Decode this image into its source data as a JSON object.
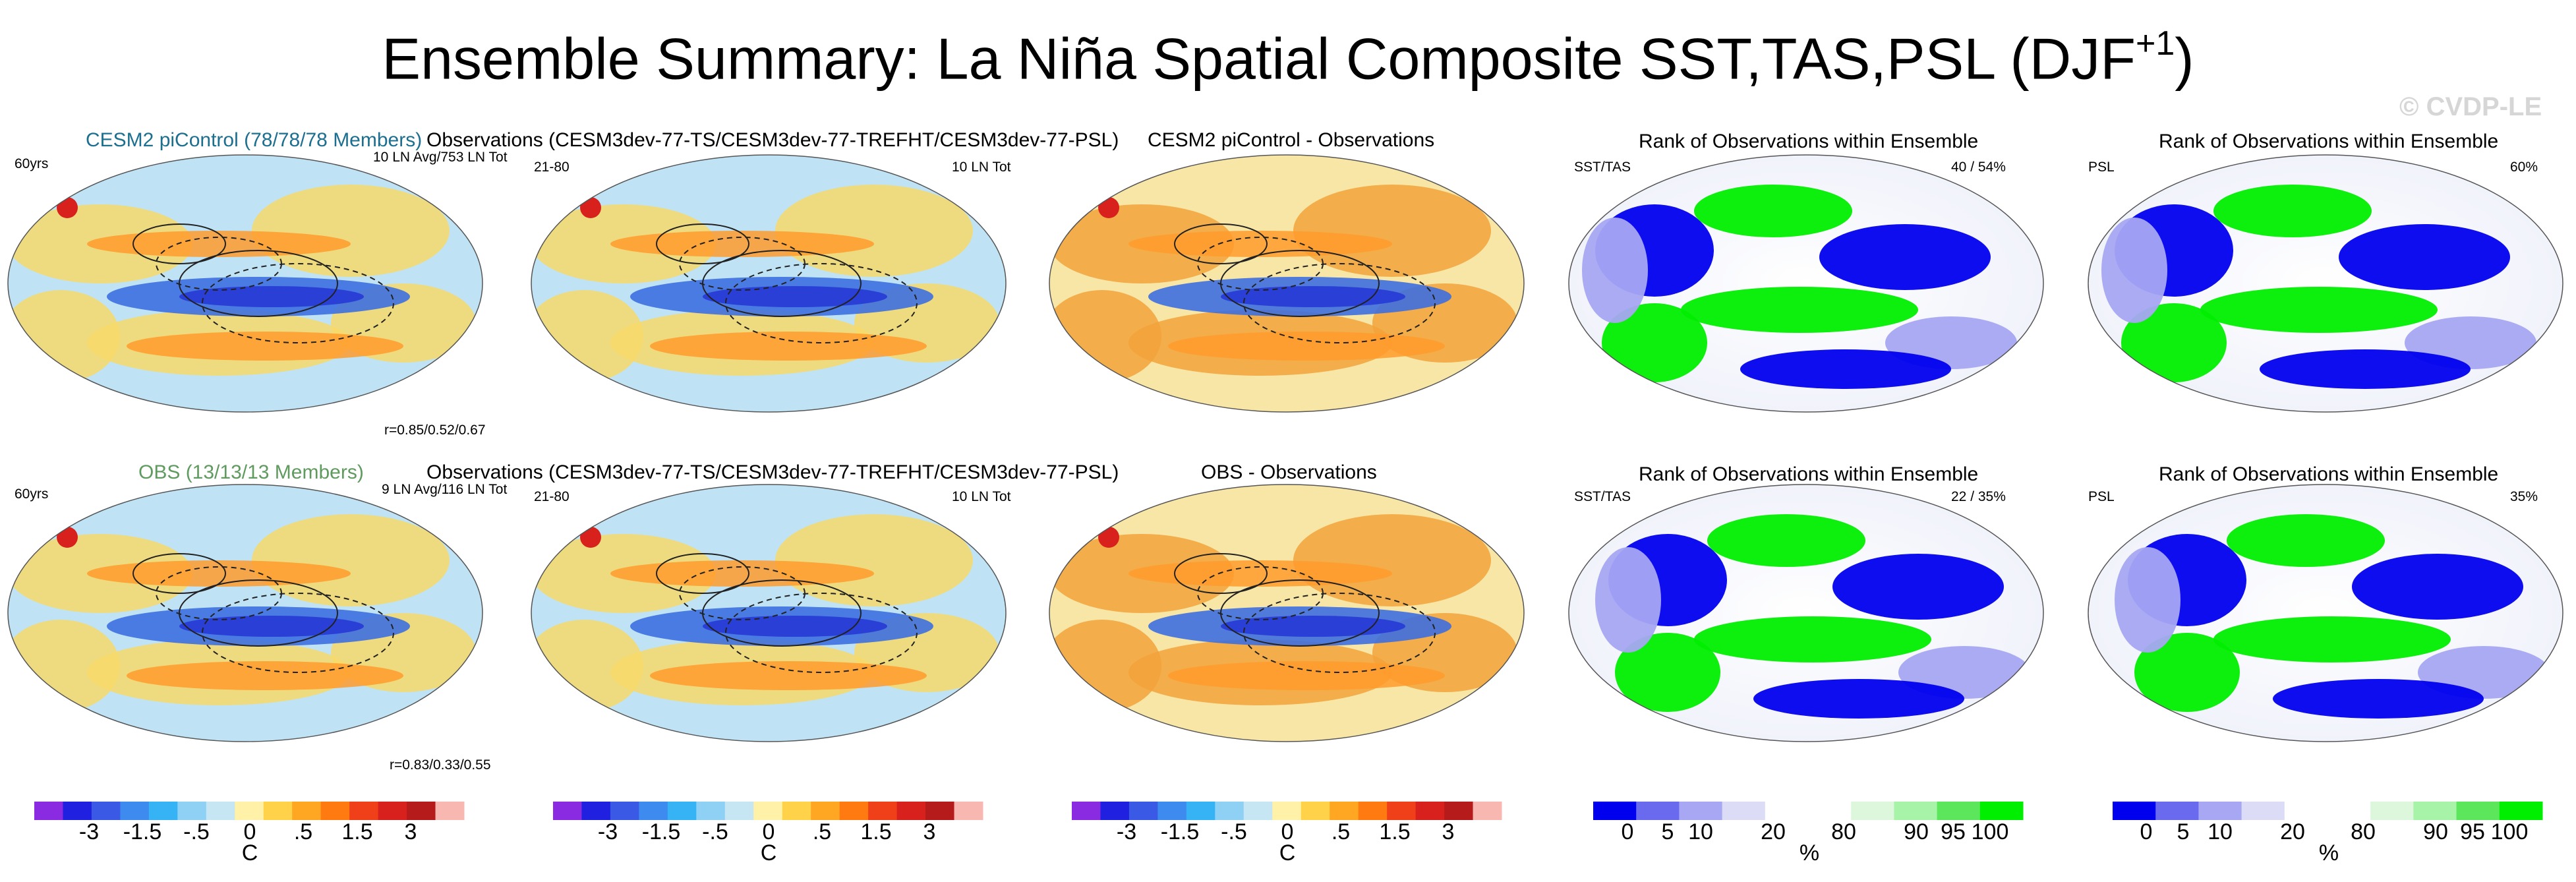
{
  "title": {
    "main": "Ensemble Summary: La Niña Spatial Composite SST,TAS,PSL (DJF",
    "sup": "+1",
    "close": ")"
  },
  "watermark": "© CVDP-LE",
  "rows": [
    {
      "model_title": "CESM2 piControl (78/78/78 Members)",
      "model_title_color": "#1d6f8f",
      "years": "60yrs",
      "model_stats": "10 LN Avg/753 LN Tot",
      "corr": "r=0.85/0.52/0.67",
      "obs_title": "Observations (CESM3dev-77-TS/CESM3dev-77-TREFHT/CESM3dev-77-PSL)",
      "obs_years": "21-80",
      "obs_stats": "10 LN Tot",
      "diff_title": "CESM2 piControl - Observations",
      "rank_sst": {
        "title": "Rank of Observations within Ensemble",
        "label": "SST/TAS",
        "value": "40 /  54%"
      },
      "rank_psl": {
        "title": "Rank of Observations within Ensemble",
        "label": "PSL",
        "value": "60%"
      }
    },
    {
      "model_title": "OBS (13/13/13 Members)",
      "model_title_color": "#5f9a5f",
      "years": "60yrs",
      "model_stats": "9 LN Avg/116 LN Tot",
      "corr": "r=0.83/0.33/0.55",
      "obs_title": "Observations (CESM3dev-77-TS/CESM3dev-77-TREFHT/CESM3dev-77-PSL)",
      "obs_years": "21-80",
      "obs_stats": "10 LN Tot",
      "diff_title": "OBS - Observations",
      "rank_sst": {
        "title": "Rank of Observations within Ensemble",
        "label": "SST/TAS",
        "value": "22 /  35%"
      },
      "rank_psl": {
        "title": "Rank of Observations within Ensemble",
        "label": "PSL",
        "value": "35%"
      }
    }
  ],
  "colorbars": {
    "anomaly": {
      "unit": "C",
      "ticks": [
        "-3",
        "-1.5",
        "-.5",
        "0",
        ".5",
        "1.5",
        "3"
      ],
      "colors": [
        "#8a2be2",
        "#2020e0",
        "#3a5ae6",
        "#3d8bef",
        "#36b3f5",
        "#8fd1f5",
        "#c6e6f4",
        "#fff2a8",
        "#ffd24a",
        "#ffa623",
        "#ff7a10",
        "#f0401a",
        "#d8211c",
        "#b51b1b",
        "#f9b7b2"
      ]
    },
    "rank": {
      "unit": "%",
      "ticks": [
        "0",
        "5",
        "10",
        "20",
        "80",
        "90",
        "95",
        "100"
      ],
      "colors": [
        "#0000ee",
        "#6a6aee",
        "#a7a7f3",
        "#dcdcf7",
        "#ffffff",
        "#ffffff",
        "#dcf7dc",
        "#a7f3a7",
        "#5ce65c",
        "#00ee00"
      ]
    }
  },
  "chart_data": [
    {
      "type": "heatmap",
      "panel": "CESM2 piControl composite",
      "fields": [
        "SST",
        "TAS",
        "PSL"
      ],
      "units": "C",
      "contours": "PSL"
    },
    {
      "type": "heatmap",
      "panel": "Observations composite (row 1)",
      "fields": [
        "TS",
        "TREFHT",
        "PSL"
      ],
      "units": "C"
    },
    {
      "type": "heatmap",
      "panel": "CESM2 piControl - Observations",
      "units": "C"
    },
    {
      "type": "heatmap",
      "panel": "Rank SST/TAS (row 1)",
      "units": "%",
      "summary": "40 / 54%"
    },
    {
      "type": "heatmap",
      "panel": "Rank PSL (row 1)",
      "units": "%",
      "summary": "60%"
    },
    {
      "type": "heatmap",
      "panel": "OBS composite",
      "units": "C"
    },
    {
      "type": "heatmap",
      "panel": "Observations composite (row 2)",
      "units": "C"
    },
    {
      "type": "heatmap",
      "panel": "OBS - Observations",
      "units": "C"
    },
    {
      "type": "heatmap",
      "panel": "Rank SST/TAS (row 2)",
      "units": "%",
      "summary": "22 / 35%"
    },
    {
      "type": "heatmap",
      "panel": "Rank PSL (row 2)",
      "units": "%",
      "summary": "35%"
    }
  ]
}
